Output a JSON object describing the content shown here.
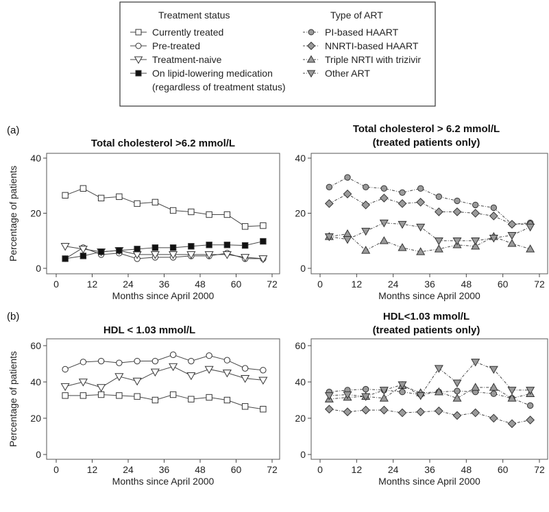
{
  "legend": {
    "treatment_heading": "Treatment status",
    "art_heading": "Type of ART",
    "treatment_items": [
      {
        "label": "Currently treated",
        "marker": "square",
        "fill": "#ffffff",
        "dash": "solid"
      },
      {
        "label": "Pre-treated",
        "marker": "circle",
        "fill": "#ffffff",
        "dash": "solid"
      },
      {
        "label": "Treatment-naive",
        "marker": "triangle-down",
        "fill": "#ffffff",
        "dash": "solid"
      },
      {
        "label": "On lipid-lowering medication",
        "label2": "(regardless of treatment status)",
        "marker": "square",
        "fill": "#111111",
        "dash": "solid"
      }
    ],
    "art_items": [
      {
        "label": "PI-based HAART",
        "marker": "circle",
        "fill": "#9a9a9a",
        "dash": "dashdot"
      },
      {
        "label": "NNRTI-based HAART",
        "marker": "diamond",
        "fill": "#9a9a9a",
        "dash": "dashdot"
      },
      {
        "label": "Triple NRTI with trizivir",
        "marker": "triangle-up",
        "fill": "#9a9a9a",
        "dash": "dashdot"
      },
      {
        "label": "Other ART",
        "marker": "triangle-down",
        "fill": "#9a9a9a",
        "dash": "dashdot"
      }
    ]
  },
  "row_labels": [
    "(a)",
    "(b)"
  ],
  "chart_data": [
    {
      "type": "line",
      "title": "Total cholesterol >6.2 mmol/L",
      "title2": "",
      "xlabel": "Months since April 2000",
      "ylabel": "Percentage of patients",
      "xlim": [
        0,
        72
      ],
      "ylim": [
        0,
        40
      ],
      "xticks": [
        0,
        12,
        24,
        36,
        48,
        60,
        72
      ],
      "yticks": [
        0,
        20,
        40
      ],
      "x": [
        3,
        9,
        15,
        21,
        27,
        33,
        39,
        45,
        51,
        57,
        63,
        69
      ],
      "series": [
        {
          "name": "Currently treated",
          "marker": "square",
          "fill": "#ffffff",
          "dash": "solid",
          "values": [
            26.5,
            29,
            25.5,
            26,
            23.5,
            24,
            21,
            20.5,
            19.5,
            19.5,
            15.2,
            15.5
          ]
        },
        {
          "name": "Pre-treated",
          "marker": "circle",
          "fill": "#ffffff",
          "dash": "solid",
          "values": [
            3.5,
            7.5,
            5,
            5.5,
            3.5,
            4,
            4,
            4.5,
            4.5,
            5.5,
            3.5,
            3.5
          ]
        },
        {
          "name": "Treatment-naive",
          "marker": "triangle-down",
          "fill": "#ffffff",
          "dash": "solid",
          "values": [
            8,
            7,
            6,
            6.5,
            5,
            5,
            5,
            5,
            5,
            5,
            4,
            3.5
          ]
        },
        {
          "name": "On lipid-lowering medication (regardless of treatment status)",
          "marker": "square",
          "fill": "#111111",
          "dash": "solid",
          "values": [
            3.5,
            4.5,
            6,
            6.5,
            7,
            7.5,
            7.5,
            8,
            8.5,
            8.5,
            8.3,
            9.8
          ]
        }
      ]
    },
    {
      "type": "line",
      "title": "Total cholesterol > 6.2 mmol/L",
      "title2": "(treated patients only)",
      "xlabel": "Months since April 2000",
      "ylabel": "",
      "xlim": [
        0,
        72
      ],
      "ylim": [
        0,
        40
      ],
      "xticks": [
        0,
        12,
        24,
        36,
        48,
        60,
        72
      ],
      "yticks": [
        0,
        20,
        40
      ],
      "x": [
        3,
        9,
        15,
        21,
        27,
        33,
        39,
        45,
        51,
        57,
        63,
        69
      ],
      "series": [
        {
          "name": "PI-based HAART",
          "marker": "circle",
          "fill": "#9a9a9a",
          "dash": "dashdot",
          "values": [
            29.5,
            33,
            29.5,
            29,
            27.5,
            29,
            26,
            24.5,
            23,
            22,
            16,
            16.5
          ]
        },
        {
          "name": "NNRTI-based HAART",
          "marker": "diamond",
          "fill": "#9a9a9a",
          "dash": "dashdot",
          "values": [
            23.5,
            27,
            23,
            25.5,
            23.5,
            24,
            20.5,
            20.5,
            20,
            19,
            16,
            16
          ]
        },
        {
          "name": "Triple NRTI with trizivir",
          "marker": "triangle-up",
          "fill": "#9a9a9a",
          "dash": "dashdot",
          "values": [
            11.5,
            12.5,
            6.5,
            10,
            7.5,
            6,
            7,
            8.5,
            8,
            11.5,
            9,
            7
          ]
        },
        {
          "name": "Other ART",
          "marker": "triangle-down",
          "fill": "#9a9a9a",
          "dash": "dashdot",
          "values": [
            11.5,
            10.5,
            13.5,
            16.5,
            16,
            15,
            10,
            10,
            10,
            11,
            12,
            15
          ]
        }
      ]
    },
    {
      "type": "line",
      "title": "HDL < 1.03 mmol/L",
      "title2": "",
      "xlabel": "Months since April 2000",
      "ylabel": "Percentage of patients",
      "xlim": [
        0,
        72
      ],
      "ylim": [
        0,
        60
      ],
      "xticks": [
        0,
        12,
        24,
        36,
        48,
        60,
        72
      ],
      "yticks": [
        0,
        20,
        40,
        60
      ],
      "x": [
        3,
        9,
        15,
        21,
        27,
        33,
        39,
        45,
        51,
        57,
        63,
        69
      ],
      "series": [
        {
          "name": "Currently treated",
          "marker": "square",
          "fill": "#ffffff",
          "dash": "solid",
          "values": [
            32.5,
            32.5,
            33,
            32.5,
            32,
            30,
            33,
            30.5,
            31.5,
            30,
            26.5,
            25
          ]
        },
        {
          "name": "Pre-treated",
          "marker": "circle",
          "fill": "#ffffff",
          "dash": "solid",
          "values": [
            47,
            51,
            51.5,
            50.5,
            51.5,
            51.5,
            55,
            51.5,
            54.5,
            52,
            47.5,
            46.5
          ]
        },
        {
          "name": "Treatment-naive",
          "marker": "triangle-down",
          "fill": "#ffffff",
          "dash": "solid",
          "values": [
            37.5,
            40,
            37,
            43,
            40.5,
            45.5,
            48.5,
            43.5,
            47,
            45,
            42,
            41
          ]
        }
      ]
    },
    {
      "type": "line",
      "title": "HDL<1.03 mmol/L",
      "title2": "(treated patients only)",
      "xlabel": "Months since April 2000",
      "ylabel": "",
      "xlim": [
        0,
        72
      ],
      "ylim": [
        0,
        60
      ],
      "xticks": [
        0,
        12,
        24,
        36,
        48,
        60,
        72
      ],
      "yticks": [
        0,
        20,
        40,
        60
      ],
      "x": [
        3,
        9,
        15,
        21,
        27,
        33,
        39,
        45,
        51,
        57,
        63,
        69
      ],
      "series": [
        {
          "name": "PI-based HAART",
          "marker": "circle",
          "fill": "#9a9a9a",
          "dash": "dashdot",
          "values": [
            34.5,
            35.5,
            36,
            35.5,
            34.5,
            33,
            34.5,
            35,
            34.5,
            33.5,
            31,
            27
          ]
        },
        {
          "name": "NNRTI-based HAART",
          "marker": "diamond",
          "fill": "#9a9a9a",
          "dash": "dashdot",
          "values": [
            25,
            23.5,
            24.5,
            24.5,
            23,
            23.5,
            24,
            21.5,
            23,
            20,
            17,
            19
          ]
        },
        {
          "name": "Triple NRTI with trizivir",
          "marker": "triangle-up",
          "fill": "#9a9a9a",
          "dash": "dashdot",
          "values": [
            30.5,
            31.5,
            32,
            31,
            38,
            34,
            34.5,
            31,
            37,
            37,
            31,
            33.5
          ]
        },
        {
          "name": "Other ART",
          "marker": "triangle-down",
          "fill": "#9a9a9a",
          "dash": "dashdot",
          "values": [
            32.5,
            33,
            32,
            35.5,
            38.5,
            32.5,
            47.5,
            39.5,
            51,
            47,
            35.5,
            35.5
          ]
        }
      ]
    }
  ]
}
